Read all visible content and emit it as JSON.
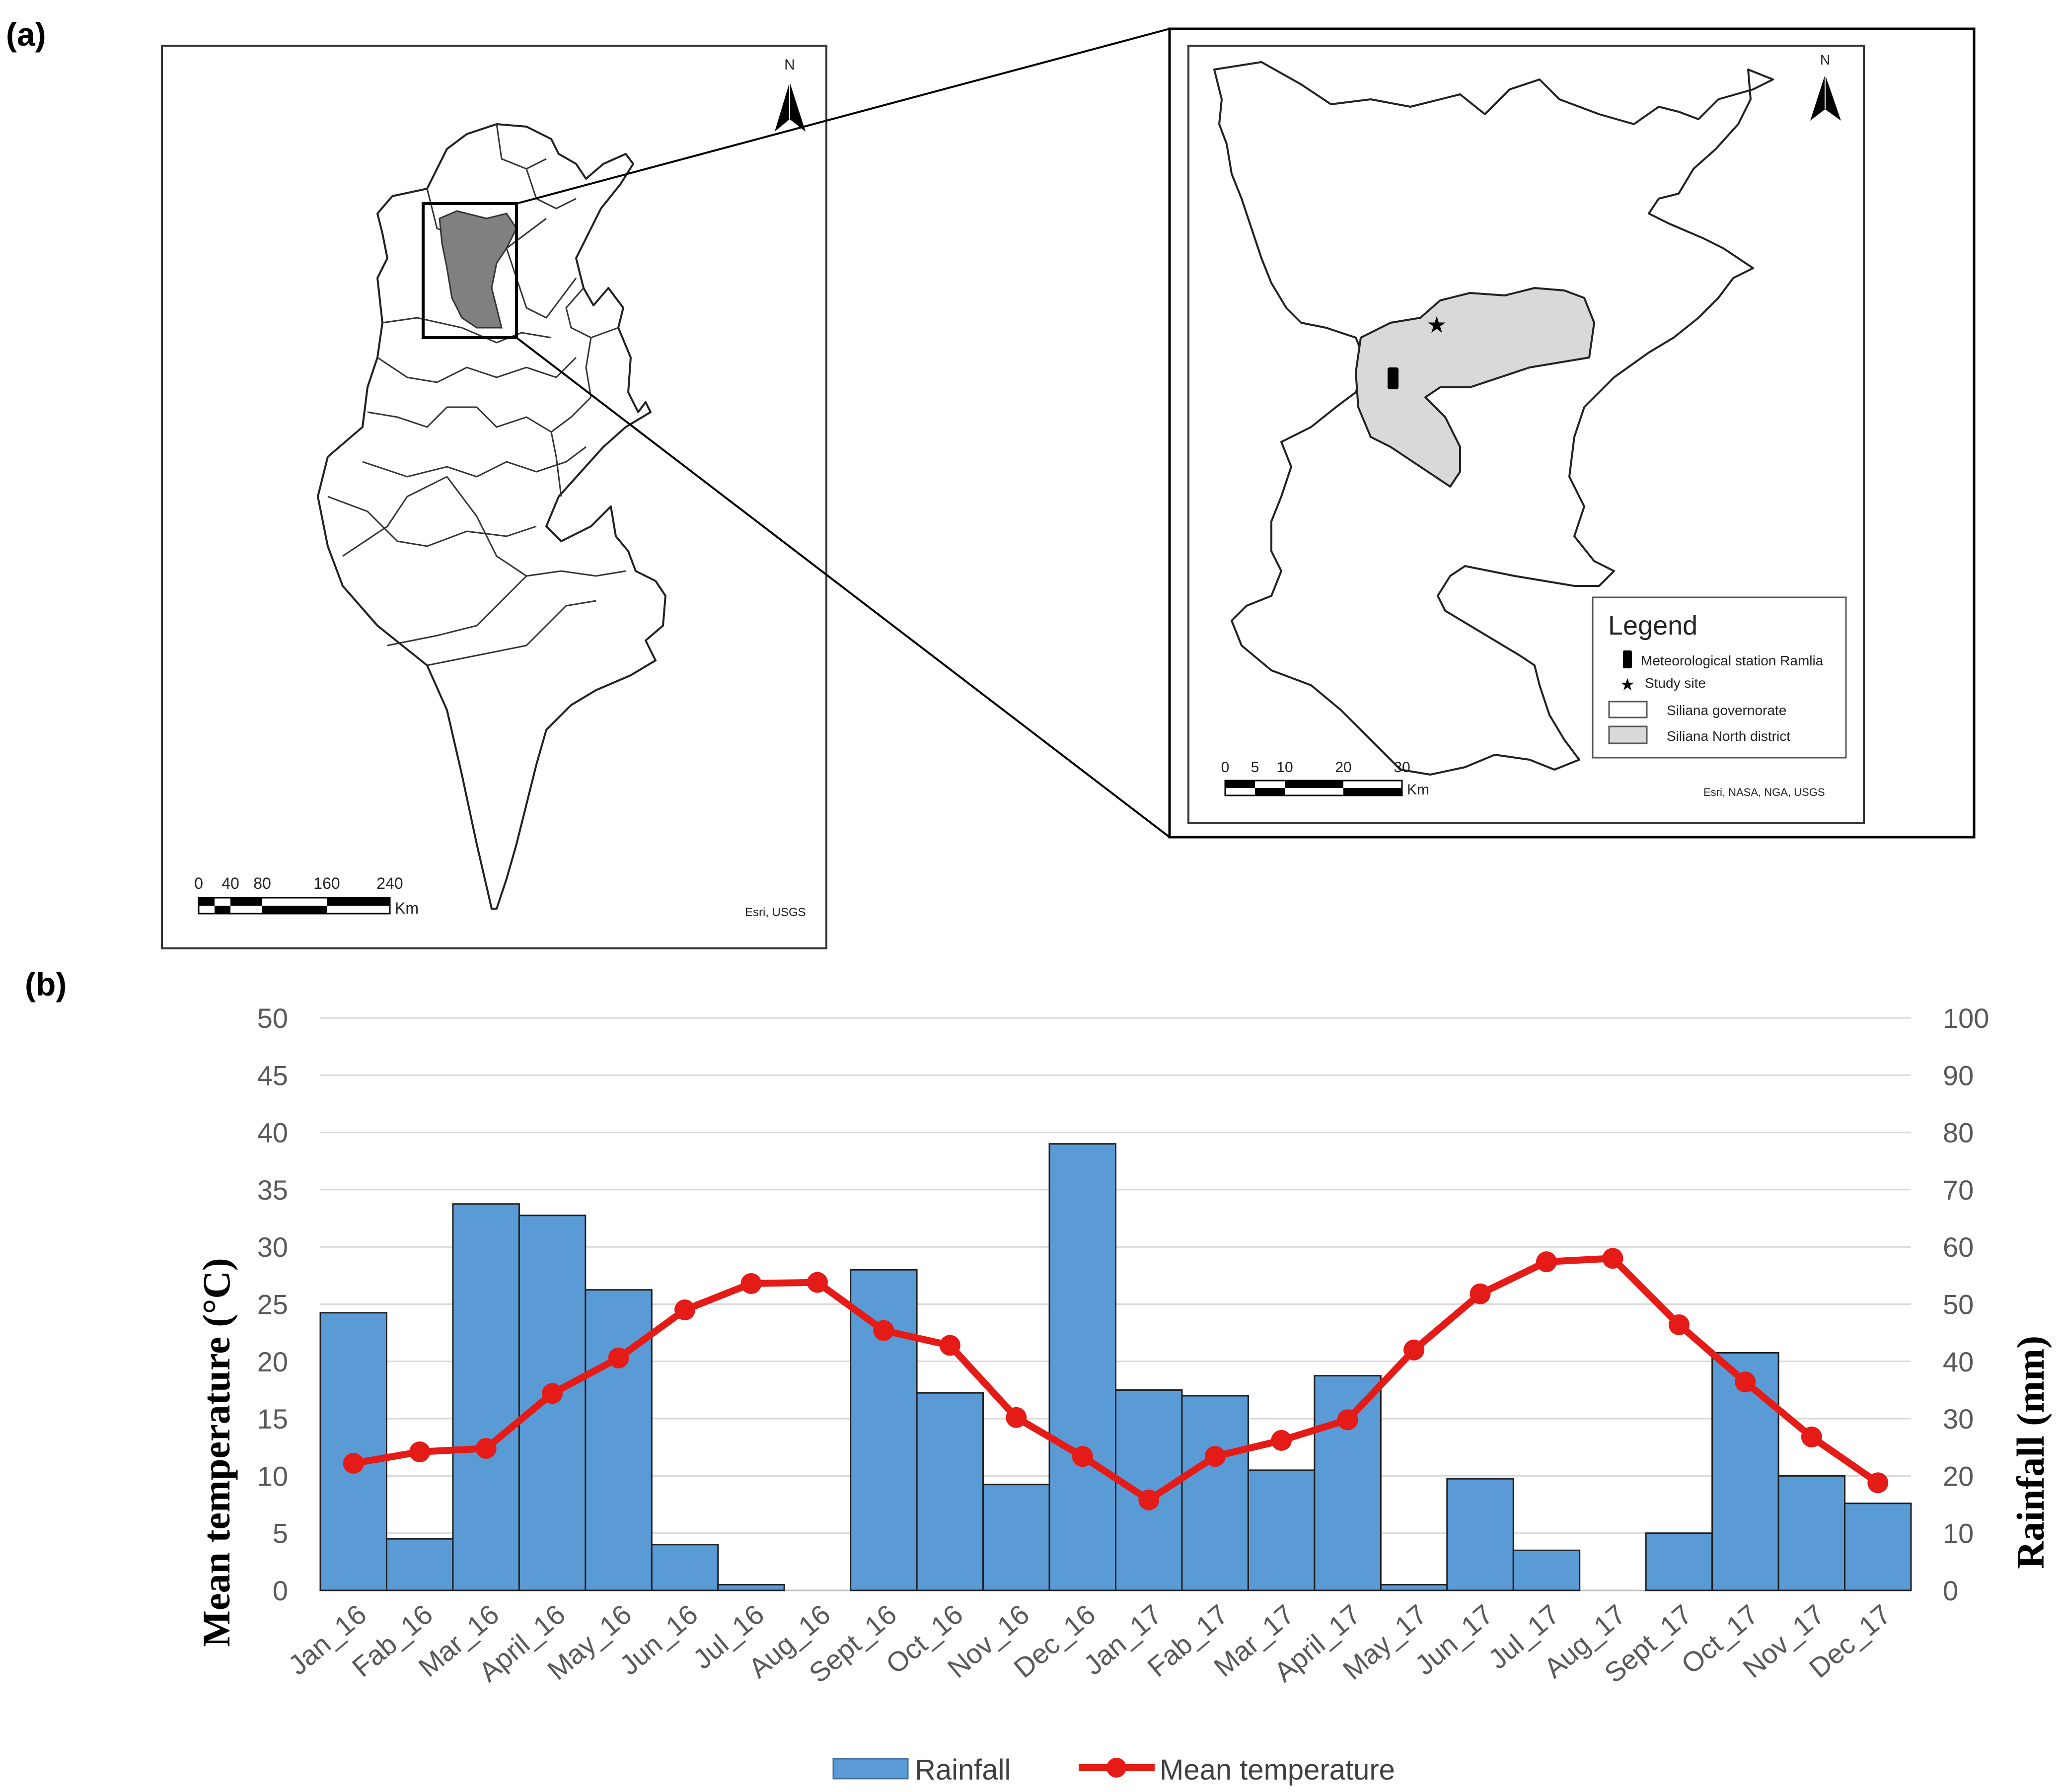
{
  "panel_a": {
    "label": "(a)",
    "north_label": "N",
    "tunisia_map": {
      "scale_ticks": [
        "0",
        "40",
        "80",
        "160",
        "240"
      ],
      "scale_unit": "Km",
      "credit": "Esri, USGS"
    },
    "inset_map": {
      "scale_ticks": [
        "0",
        "5",
        "10",
        "20",
        "30"
      ],
      "scale_unit": "Km",
      "credit": "Esri, NASA, NGA, USGS",
      "legend": {
        "title": "Legend",
        "items": [
          {
            "symbol": "black-bar",
            "label": "Meteorological station Ramlia"
          },
          {
            "symbol": "star",
            "label": "Study site"
          },
          {
            "symbol": "white-box",
            "label": "Siliana governorate"
          },
          {
            "symbol": "grey-box",
            "label": "Siliana North district"
          }
        ]
      }
    }
  },
  "panel_b": {
    "label": "(b)"
  },
  "chart_data": {
    "type": "bar+line",
    "categories": [
      "Jan_16",
      "Fab_16",
      "Mar_16",
      "April_16",
      "May_16",
      "Jun_16",
      "Jul_16",
      "Aug_16",
      "Sept_16",
      "Oct_16",
      "Nov_16",
      "Dec_16",
      "Jan_17",
      "Fab_17",
      "Mar_17",
      "April_17",
      "May_17",
      "Jun_17",
      "Jul_17",
      "Aug_17",
      "Sept_17",
      "Oct_17",
      "Nov_17",
      "Dec_17"
    ],
    "series": [
      {
        "name": "Rainfall",
        "type": "bar",
        "axis": "right",
        "color": "#5B9BD5",
        "values": [
          48.5,
          9,
          67.5,
          65.5,
          52.5,
          8,
          1,
          0,
          56,
          34.5,
          18.5,
          78,
          35,
          34,
          21,
          37.5,
          1,
          19.5,
          7,
          0,
          10,
          41.5,
          20,
          15.2
        ]
      },
      {
        "name": "Mean temperature",
        "type": "line",
        "axis": "left",
        "color": "#E41B17",
        "values": [
          11.1,
          12.1,
          12.4,
          17.2,
          20.3,
          24.5,
          26.8,
          26.9,
          22.7,
          21.4,
          15.1,
          11.7,
          7.9,
          11.7,
          13.1,
          14.9,
          21,
          25.9,
          28.7,
          29,
          23.2,
          18.2,
          13.4,
          9.4
        ]
      }
    ],
    "y_left": {
      "label": "Mean temperature (°C)",
      "min": 0,
      "max": 50,
      "ticks": [
        "0",
        "5",
        "10",
        "15",
        "20",
        "25",
        "30",
        "35",
        "40",
        "45",
        "50"
      ]
    },
    "y_right": {
      "label": "Rainfall (mm)",
      "min": 0,
      "max": 100,
      "ticks": [
        "0",
        "10",
        "20",
        "30",
        "40",
        "50",
        "60",
        "70",
        "80",
        "90",
        "100"
      ]
    },
    "legend": [
      "Rainfall",
      "Mean temperature"
    ],
    "legend_position": "bottom",
    "grid": true
  }
}
